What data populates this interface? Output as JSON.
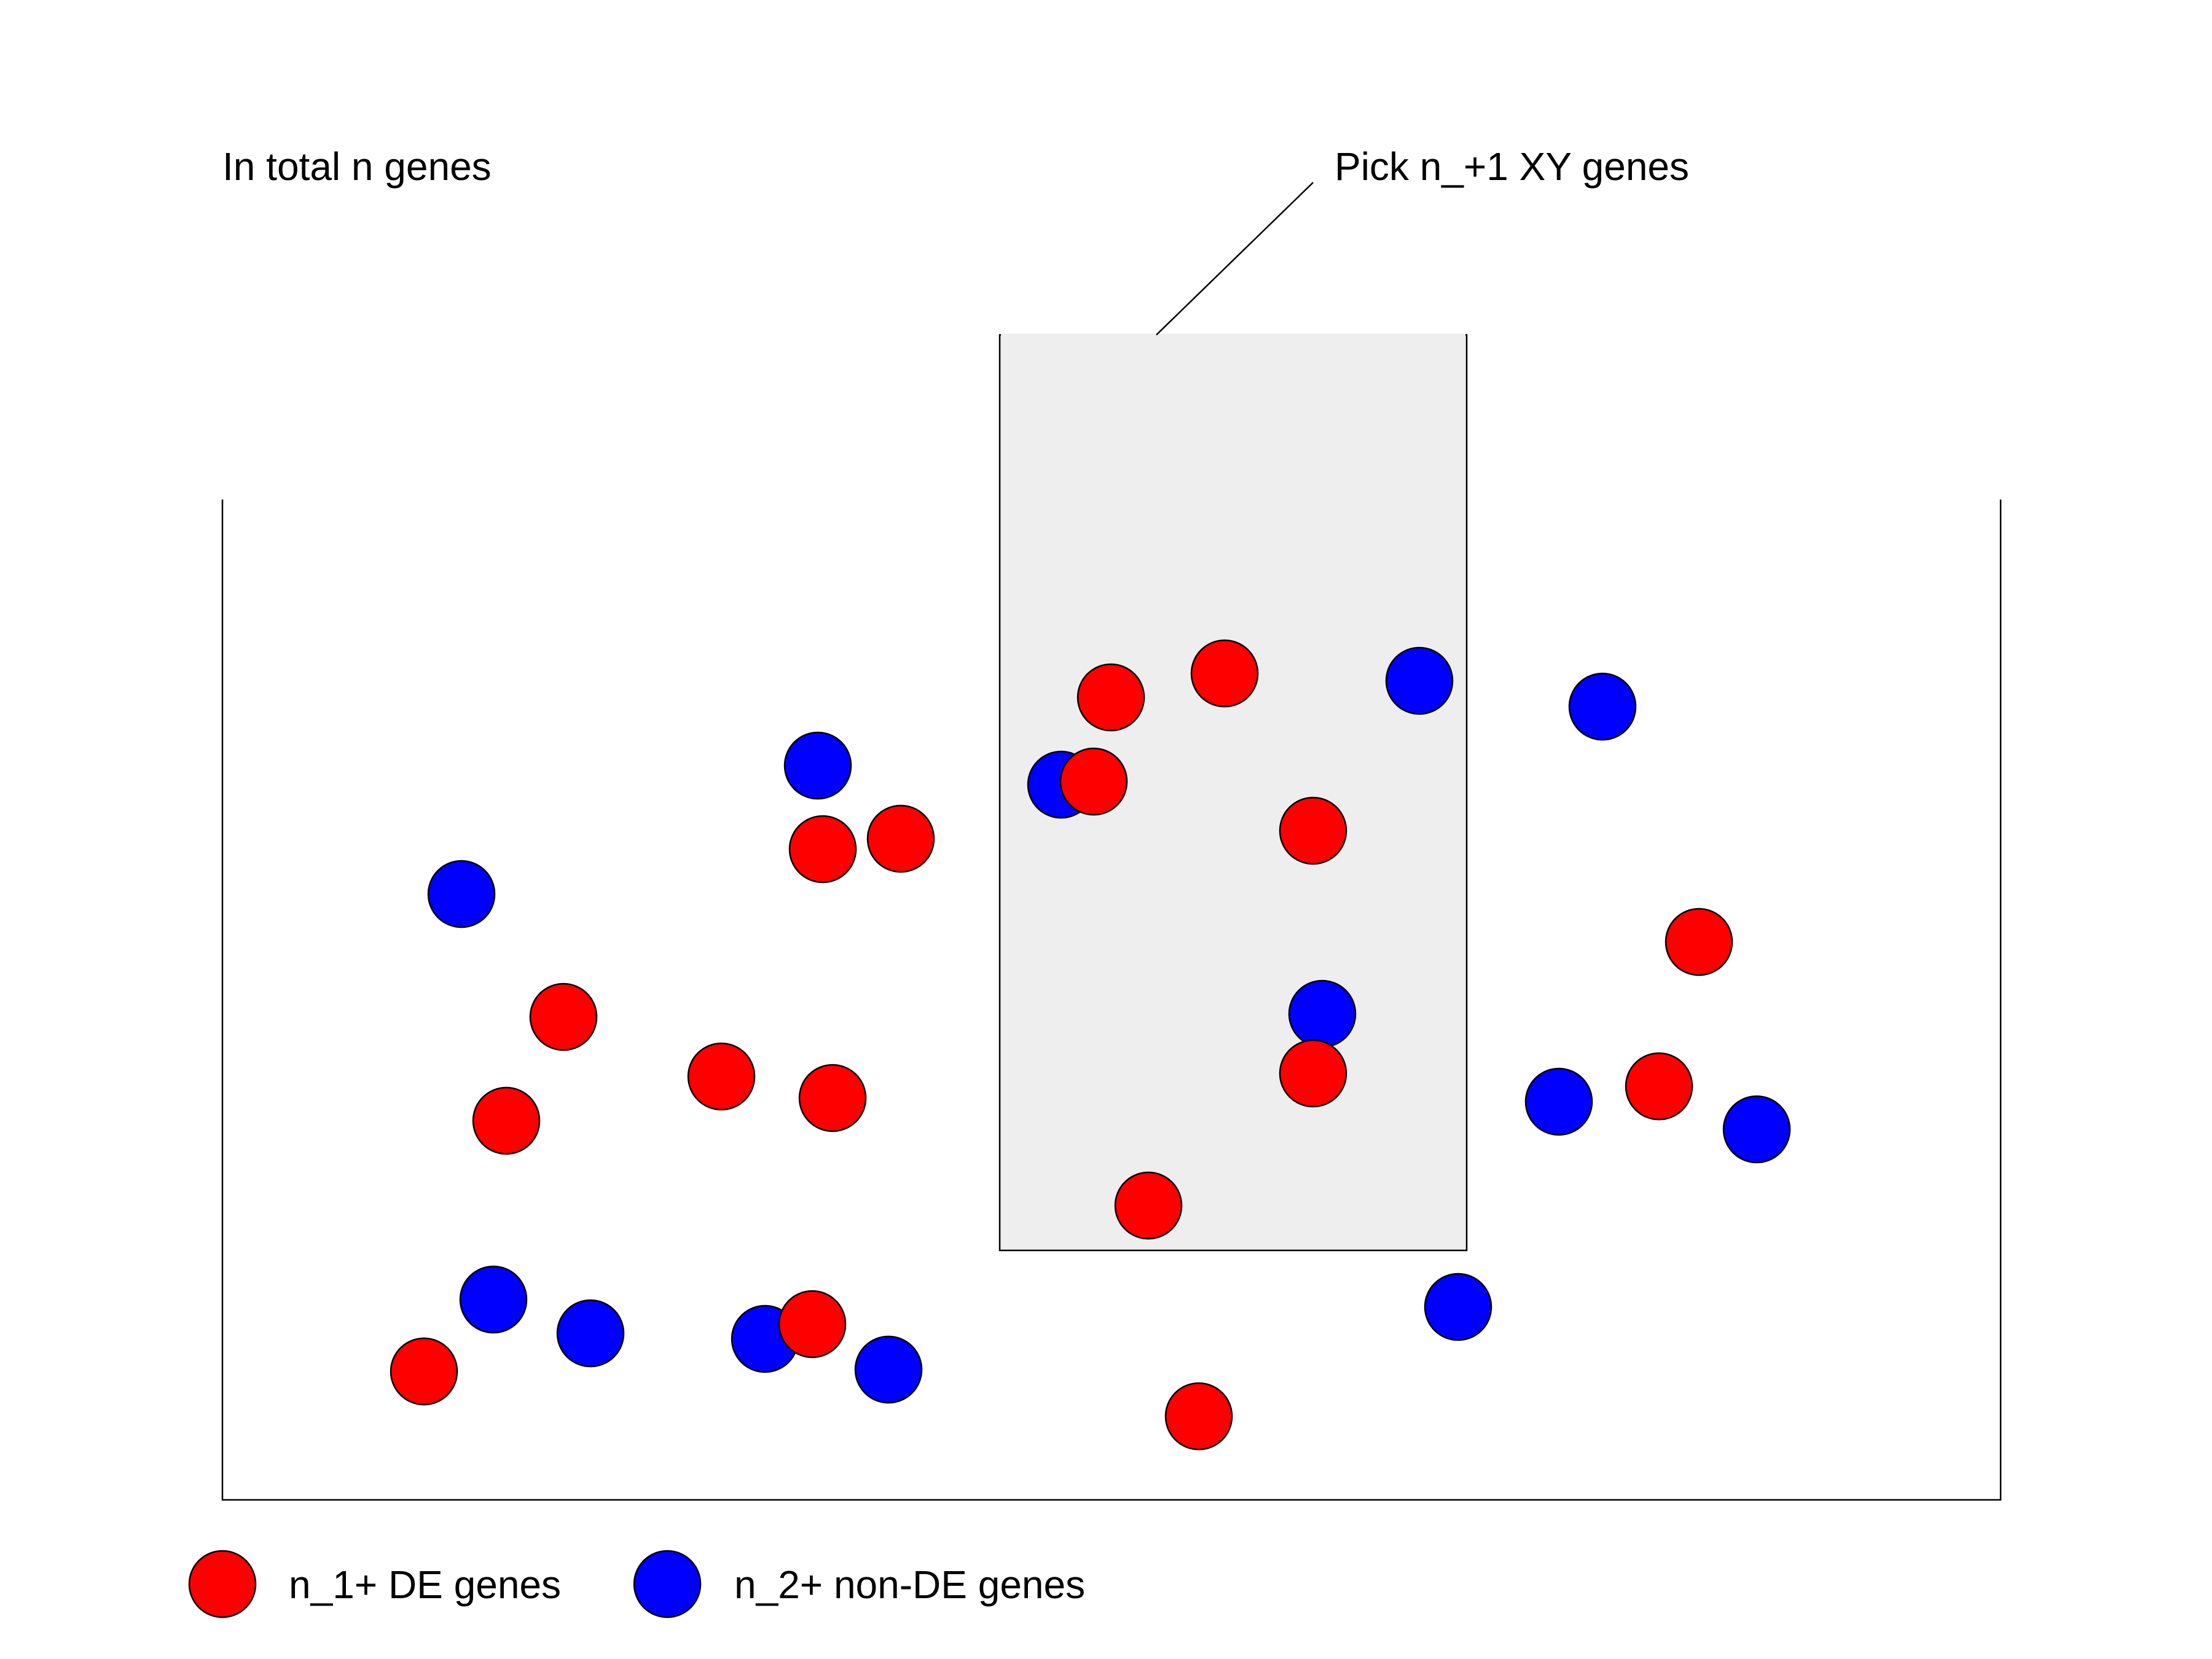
{
  "labels": {
    "total": "In total n genes",
    "pick": "Pick n_+1 XY genes"
  },
  "legend": {
    "de": "n_1+ DE genes",
    "non_de": "n_2+ non-DE genes"
  },
  "colors": {
    "de": "#ff0000",
    "non_de": "#0000ff",
    "selection_fill": "#eeeeee",
    "stroke": "#000000"
  }
}
